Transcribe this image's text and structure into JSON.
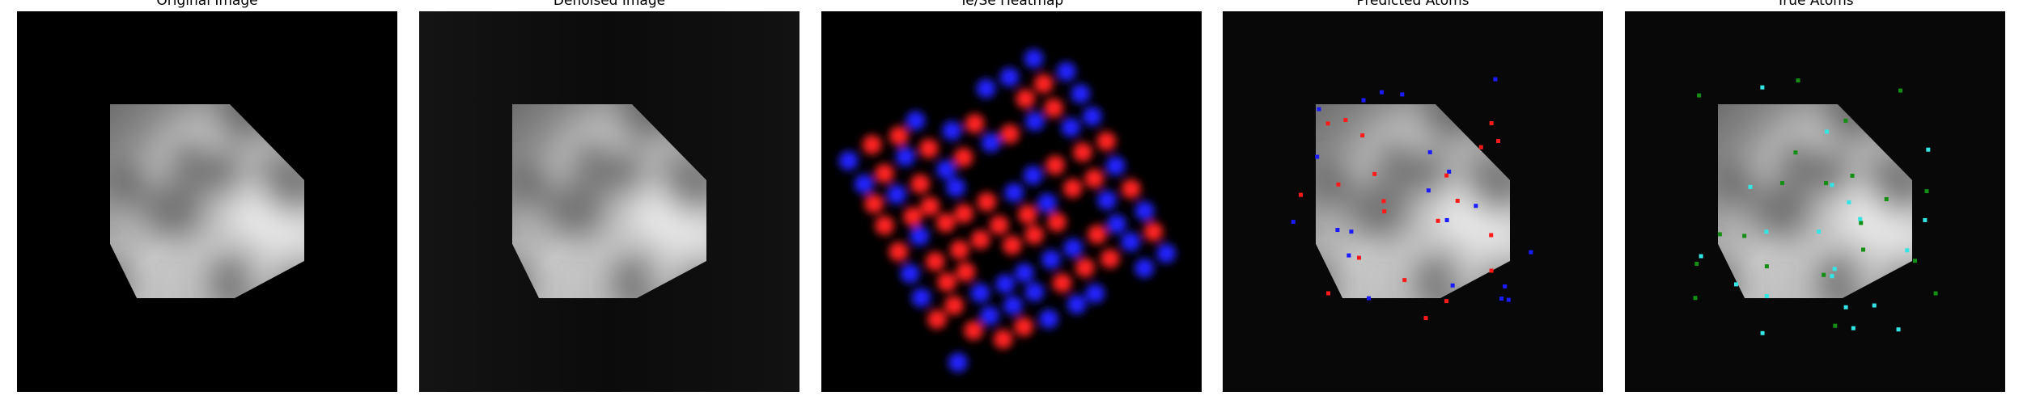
{
  "panels": [
    {
      "title": "Original Image"
    },
    {
      "title": "Denoised Image"
    },
    {
      "title": "Te/Se Heatmap"
    },
    {
      "title": "Predicted Atoms"
    },
    {
      "title": "True Atoms"
    }
  ]
}
